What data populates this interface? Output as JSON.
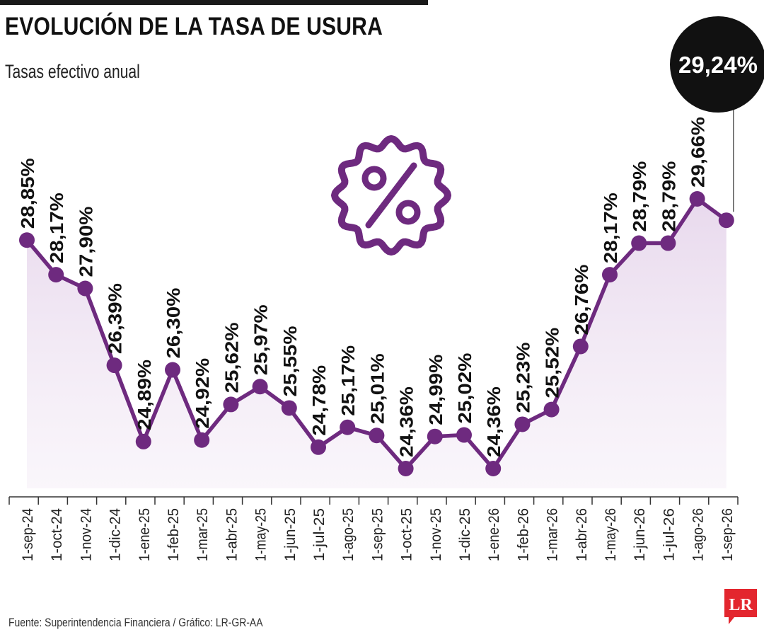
{
  "header": {
    "title": "EVOLUCIÓN DE LA TASA DE USURA",
    "subtitle": "Tasas efectivo anual"
  },
  "footer": {
    "source": "Fuente: Superintendencia Financiera / Gráfico: LR-GR-AA"
  },
  "logo": {
    "text": "LR",
    "color": "#e3262e"
  },
  "colors": {
    "line": "#6e2a7f",
    "area": "#ece0ef",
    "callout": "#111111",
    "icon": "#6e2a7f"
  },
  "icon": "percent-badge-icon",
  "chart_data": {
    "type": "line",
    "title": "EVOLUCIÓN DE LA TASA DE USURA",
    "subtitle": "Tasas efectivo anual",
    "xlabel": "",
    "ylabel": "",
    "categories": [
      "1-sep-24",
      "1-oct-24",
      "1-nov-24",
      "1-dic-24",
      "1-ene-25",
      "1-feb-25",
      "1-mar-25",
      "1-abr-25",
      "1-may-25",
      "1-jun-25",
      "1-jul-25",
      "1-ago-25",
      "1-sep-25",
      "1-oct-25",
      "1-nov-25",
      "1-dic-25",
      "1-ene-26",
      "1-feb-26",
      "1-mar-26",
      "1-abr-26",
      "1-may-26",
      "1-jun-26",
      "1-jul-26",
      "1-ago-26",
      "1-sep-26"
    ],
    "values": [
      28.85,
      28.17,
      27.9,
      26.39,
      24.89,
      26.3,
      24.92,
      25.62,
      25.97,
      25.55,
      24.78,
      25.17,
      25.01,
      24.36,
      24.99,
      25.02,
      24.36,
      25.23,
      25.52,
      26.76,
      28.17,
      28.79,
      28.79,
      29.66,
      29.24
    ],
    "labels": [
      "28,85%",
      "28,17%",
      "27,90%",
      "26,39%",
      "24,89%",
      "26,30%",
      "24,92%",
      "25,62%",
      "25,97%",
      "25,55%",
      "24,78%",
      "25,17%",
      "25,01%",
      "24,36%",
      "24,99%",
      "25,02%",
      "24,36%",
      "25,23%",
      "25,52%",
      "26,76%",
      "28,17%",
      "28,79%",
      "28,79%",
      "29,66%",
      ""
    ],
    "highlight": {
      "index": 24,
      "label": "29,24%"
    },
    "ylim": [
      24.36,
      29.66
    ],
    "grid": false,
    "legend": "none"
  }
}
